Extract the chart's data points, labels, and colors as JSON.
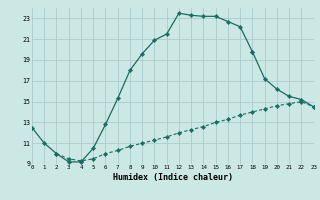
{
  "xlabel": "Humidex (Indice chaleur)",
  "bg_color": "#cce8e4",
  "grid_color": "#aacccc",
  "line_color": "#1a6b60",
  "xlim": [
    0,
    23
  ],
  "ylim": [
    9,
    24
  ],
  "yticks": [
    9,
    11,
    13,
    15,
    17,
    19,
    21,
    23
  ],
  "xticks": [
    0,
    1,
    2,
    3,
    4,
    5,
    6,
    7,
    8,
    9,
    10,
    11,
    12,
    13,
    14,
    15,
    16,
    17,
    18,
    19,
    20,
    21,
    22,
    23
  ],
  "curve1_x": [
    0,
    1,
    2,
    3,
    4,
    5,
    6,
    7,
    8,
    9,
    10,
    11,
    12,
    13,
    14,
    15,
    16,
    17,
    18
  ],
  "curve1_y": [
    12.5,
    11.0,
    10.0,
    9.2,
    9.2,
    10.5,
    12.8,
    15.3,
    18.0,
    19.6,
    20.9,
    21.5,
    23.5,
    23.3,
    23.2,
    23.2,
    22.7,
    22.2,
    19.8
  ],
  "curve2_x": [
    18,
    19,
    20,
    21,
    22,
    23
  ],
  "curve2_y": [
    19.8,
    17.2,
    16.2,
    15.5,
    15.2,
    14.5
  ],
  "curve3_x": [
    2,
    3,
    4,
    5,
    6,
    7,
    8,
    9,
    10,
    11,
    12,
    13,
    14,
    15,
    16,
    17,
    18,
    19,
    20,
    21,
    22,
    23
  ],
  "curve3_y": [
    10.0,
    9.5,
    9.3,
    9.5,
    10.0,
    10.3,
    10.7,
    11.0,
    11.3,
    11.6,
    12.0,
    12.3,
    12.6,
    13.0,
    13.3,
    13.7,
    14.0,
    14.3,
    14.6,
    14.8,
    15.0,
    14.5
  ]
}
